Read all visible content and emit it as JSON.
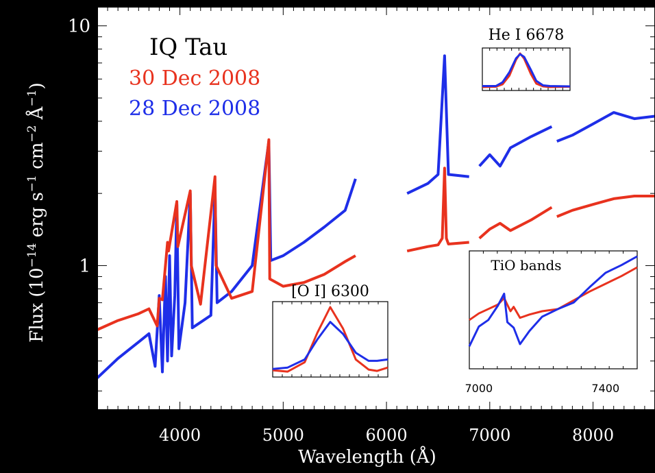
{
  "chart_data": {
    "type": "line",
    "title": "",
    "object_label": "IQ Tau",
    "xlabel": "Wavelength (Å)",
    "ylabel": "Flux (10^-14 erg s^-1 cm^-2 Å^-1)",
    "xlim": [
      3200,
      8600
    ],
    "ylim": [
      0.25,
      12
    ],
    "y_scale": "log",
    "x_ticks": [
      4000,
      5000,
      6000,
      7000,
      8000
    ],
    "y_ticks": [
      1,
      10
    ],
    "grid": false,
    "legend": "top-left",
    "colors": {
      "red": "#e8321e",
      "blue": "#1e2ee8",
      "background": "#ffffff"
    },
    "series": [
      {
        "name": "30 Dec 2008",
        "color": "#e8321e",
        "segments": [
          [
            [
              3200,
              0.54
            ],
            [
              3400,
              0.59
            ],
            [
              3600,
              0.63
            ],
            [
              3700,
              0.66
            ],
            [
              3780,
              0.56
            ],
            [
              3800,
              0.73
            ],
            [
              3830,
              0.72
            ],
            [
              3880,
              1.25
            ],
            [
              3890,
              1.15
            ],
            [
              3970,
              1.85
            ],
            [
              3980,
              1.2
            ],
            [
              4100,
              2.05
            ],
            [
              4110,
              1.0
            ],
            [
              4200,
              0.69
            ],
            [
              4340,
              2.35
            ],
            [
              4350,
              1.0
            ],
            [
              4500,
              0.73
            ],
            [
              4700,
              0.78
            ],
            [
              4861,
              3.35
            ],
            [
              4870,
              0.88
            ],
            [
              5000,
              0.82
            ],
            [
              5200,
              0.85
            ],
            [
              5400,
              0.92
            ],
            [
              5600,
              1.04
            ],
            [
              5700,
              1.1
            ]
          ],
          [
            [
              6200,
              1.15
            ],
            [
              6400,
              1.2
            ],
            [
              6500,
              1.22
            ],
            [
              6540,
              1.3
            ],
            [
              6563,
              2.55
            ],
            [
              6580,
              1.3
            ],
            [
              6600,
              1.23
            ],
            [
              6800,
              1.25
            ]
          ],
          [
            [
              6900,
              1.3
            ],
            [
              7000,
              1.42
            ],
            [
              7100,
              1.5
            ],
            [
              7200,
              1.4
            ],
            [
              7400,
              1.55
            ],
            [
              7600,
              1.75
            ]
          ],
          [
            [
              7650,
              1.6
            ],
            [
              7800,
              1.7
            ],
            [
              8000,
              1.8
            ],
            [
              8200,
              1.9
            ],
            [
              8400,
              1.95
            ],
            [
              8600,
              1.95
            ]
          ]
        ]
      },
      {
        "name": "28 Dec 2008",
        "color": "#1e2ee8",
        "segments": [
          [
            [
              3200,
              0.34
            ],
            [
              3400,
              0.41
            ],
            [
              3600,
              0.48
            ],
            [
              3700,
              0.52
            ],
            [
              3760,
              0.38
            ],
            [
              3800,
              0.75
            ],
            [
              3830,
              0.36
            ],
            [
              3860,
              0.9
            ],
            [
              3880,
              0.4
            ],
            [
              3900,
              1.1
            ],
            [
              3920,
              0.42
            ],
            [
              3950,
              0.75
            ],
            [
              3970,
              1.8
            ],
            [
              3990,
              0.45
            ],
            [
              4050,
              0.7
            ],
            [
              4100,
              2.0
            ],
            [
              4120,
              0.55
            ],
            [
              4200,
              0.58
            ],
            [
              4300,
              0.62
            ],
            [
              4340,
              2.1
            ],
            [
              4360,
              0.7
            ],
            [
              4500,
              0.78
            ],
            [
              4700,
              1.0
            ],
            [
              4861,
              3.3
            ],
            [
              4880,
              1.05
            ],
            [
              5000,
              1.1
            ],
            [
              5200,
              1.25
            ],
            [
              5400,
              1.45
            ],
            [
              5600,
              1.7
            ],
            [
              5700,
              2.3
            ]
          ],
          [
            [
              6200,
              2.0
            ],
            [
              6400,
              2.2
            ],
            [
              6500,
              2.4
            ],
            [
              6563,
              7.5
            ],
            [
              6600,
              2.4
            ],
            [
              6800,
              2.35
            ]
          ],
          [
            [
              6900,
              2.6
            ],
            [
              7000,
              2.9
            ],
            [
              7100,
              2.6
            ],
            [
              7200,
              3.1
            ],
            [
              7400,
              3.45
            ],
            [
              7600,
              3.8
            ]
          ],
          [
            [
              7650,
              3.3
            ],
            [
              7800,
              3.5
            ],
            [
              8000,
              3.9
            ],
            [
              8200,
              4.35
            ],
            [
              8400,
              4.1
            ],
            [
              8600,
              4.2
            ]
          ]
        ]
      }
    ],
    "insets": [
      {
        "title": "He I 6678",
        "x_ticks": [
          6660,
          6700
        ],
        "xlim": [
          6650,
          6715
        ],
        "series": [
          {
            "name": "30 Dec 2008",
            "color": "#e8321e",
            "x": [
              6650,
              6660,
              6665,
              6670,
              6675,
              6678,
              6681,
              6686,
              6690,
              6695,
              6700,
              6715
            ],
            "y": [
              0.02,
              0.03,
              0.1,
              0.35,
              0.82,
              1.0,
              0.85,
              0.4,
              0.12,
              0.04,
              0.02,
              0.03
            ]
          },
          {
            "name": "28 Dec 2008",
            "color": "#1e2ee8",
            "x": [
              6650,
              6660,
              6665,
              6670,
              6675,
              6678,
              6681,
              6686,
              6690,
              6695,
              6700,
              6715
            ],
            "y": [
              0.05,
              0.05,
              0.16,
              0.45,
              0.86,
              0.98,
              0.9,
              0.52,
              0.2,
              0.07,
              0.05,
              0.04
            ]
          }
        ]
      },
      {
        "title": "[O I] 6300",
        "x_ticks": [
          6280,
          6320
        ],
        "xlim": [
          6273,
          6327
        ],
        "series": [
          {
            "name": "30 Dec 2008",
            "color": "#e8321e",
            "x": [
              6273,
              6280,
              6288,
              6294,
              6300,
              6306,
              6312,
              6318,
              6322,
              6327
            ],
            "y": [
              0.06,
              0.04,
              0.18,
              0.62,
              1.0,
              0.68,
              0.22,
              0.07,
              0.05,
              0.1
            ]
          },
          {
            "name": "28 Dec 2008",
            "color": "#1e2ee8",
            "x": [
              6273,
              6280,
              6288,
              6294,
              6300,
              6306,
              6312,
              6318,
              6322,
              6327
            ],
            "y": [
              0.08,
              0.1,
              0.22,
              0.52,
              0.78,
              0.6,
              0.32,
              0.2,
              0.2,
              0.22
            ]
          }
        ]
      },
      {
        "title": "TiO bands",
        "x_ticks": [
          7000,
          7400
        ],
        "xlim": [
          6970,
          7500
        ],
        "series": [
          {
            "name": "30 Dec 2008",
            "color": "#e8321e",
            "x": [
              6970,
              7000,
              7030,
              7060,
              7080,
              7100,
              7110,
              7130,
              7160,
              7200,
              7250,
              7300,
              7350,
              7400,
              7450,
              7500
            ],
            "y": [
              0.42,
              0.48,
              0.52,
              0.56,
              0.62,
              0.5,
              0.54,
              0.44,
              0.47,
              0.5,
              0.52,
              0.6,
              0.68,
              0.75,
              0.82,
              0.9
            ]
          },
          {
            "name": "28 Dec 2008",
            "color": "#1e2ee8",
            "x": [
              6970,
              7000,
              7030,
              7060,
              7080,
              7090,
              7110,
              7130,
              7160,
              7200,
              7250,
              7300,
              7350,
              7400,
              7450,
              7500
            ],
            "y": [
              0.18,
              0.36,
              0.42,
              0.55,
              0.66,
              0.4,
              0.35,
              0.2,
              0.32,
              0.45,
              0.52,
              0.58,
              0.72,
              0.85,
              0.92,
              1.0
            ]
          }
        ]
      }
    ]
  }
}
